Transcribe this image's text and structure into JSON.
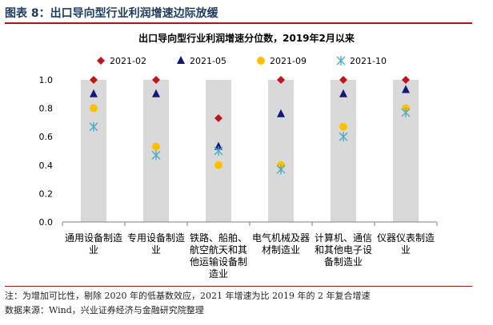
{
  "figure": {
    "title": "图表 8：出口导向型行业利润增速边际放缓"
  },
  "footnote": {
    "note": "注：为增加可比性，剔除 2020 年的低基数效应，2021 年增速为比 2019 年的 2 年复合增速",
    "source": "数据来源：Wind，兴业证券经济与金融研究院整理"
  },
  "chart_data": {
    "type": "scatter",
    "title": "出口导向型行业利润增速分位数，2019年2月以来",
    "categories": [
      "通用设备制造业",
      "专用设备制造业",
      "铁路、船舶、航空航天和其他运输设备制造业",
      "电气机械及器材制造业",
      "计算机、通信和其他电子设备制造业",
      "仪器仪表制造业"
    ],
    "category_lines": [
      [
        "通用设备制造",
        "业"
      ],
      [
        "专用设备制造",
        "业"
      ],
      [
        "铁路、船舶、",
        "航空航天和其",
        "他运输设备制",
        "造业"
      ],
      [
        "电气机械及器",
        "材制造业"
      ],
      [
        "计算机、通信",
        "和其他电子设",
        "备制造业"
      ],
      [
        "仪器仪表制造",
        "业"
      ]
    ],
    "background_bars": [
      1.0,
      1.0,
      1.0,
      1.0,
      1.0,
      1.0
    ],
    "series": [
      {
        "name": "2021-02",
        "marker": "diamond",
        "color": "#c0161b",
        "values": [
          1.0,
          1.0,
          0.73,
          1.0,
          1.0,
          1.0
        ]
      },
      {
        "name": "2021-05",
        "marker": "triangle",
        "color": "#13197a",
        "values": [
          0.9,
          0.9,
          0.53,
          0.76,
          0.9,
          0.93
        ]
      },
      {
        "name": "2021-09",
        "marker": "circle",
        "color": "#ffc000",
        "values": [
          0.8,
          0.53,
          0.4,
          0.4,
          0.67,
          0.8
        ]
      },
      {
        "name": "2021-10",
        "marker": "asterisk",
        "color": "#4bacc6",
        "values": [
          0.67,
          0.47,
          0.5,
          0.37,
          0.6,
          0.77
        ]
      }
    ],
    "ylim": [
      0,
      1.0
    ],
    "yticks": [
      "0.0",
      "0.2",
      "0.4",
      "0.6",
      "0.8",
      "1.0"
    ],
    "xlabel": "",
    "ylabel": "",
    "grid": false,
    "legend_position": "top"
  }
}
